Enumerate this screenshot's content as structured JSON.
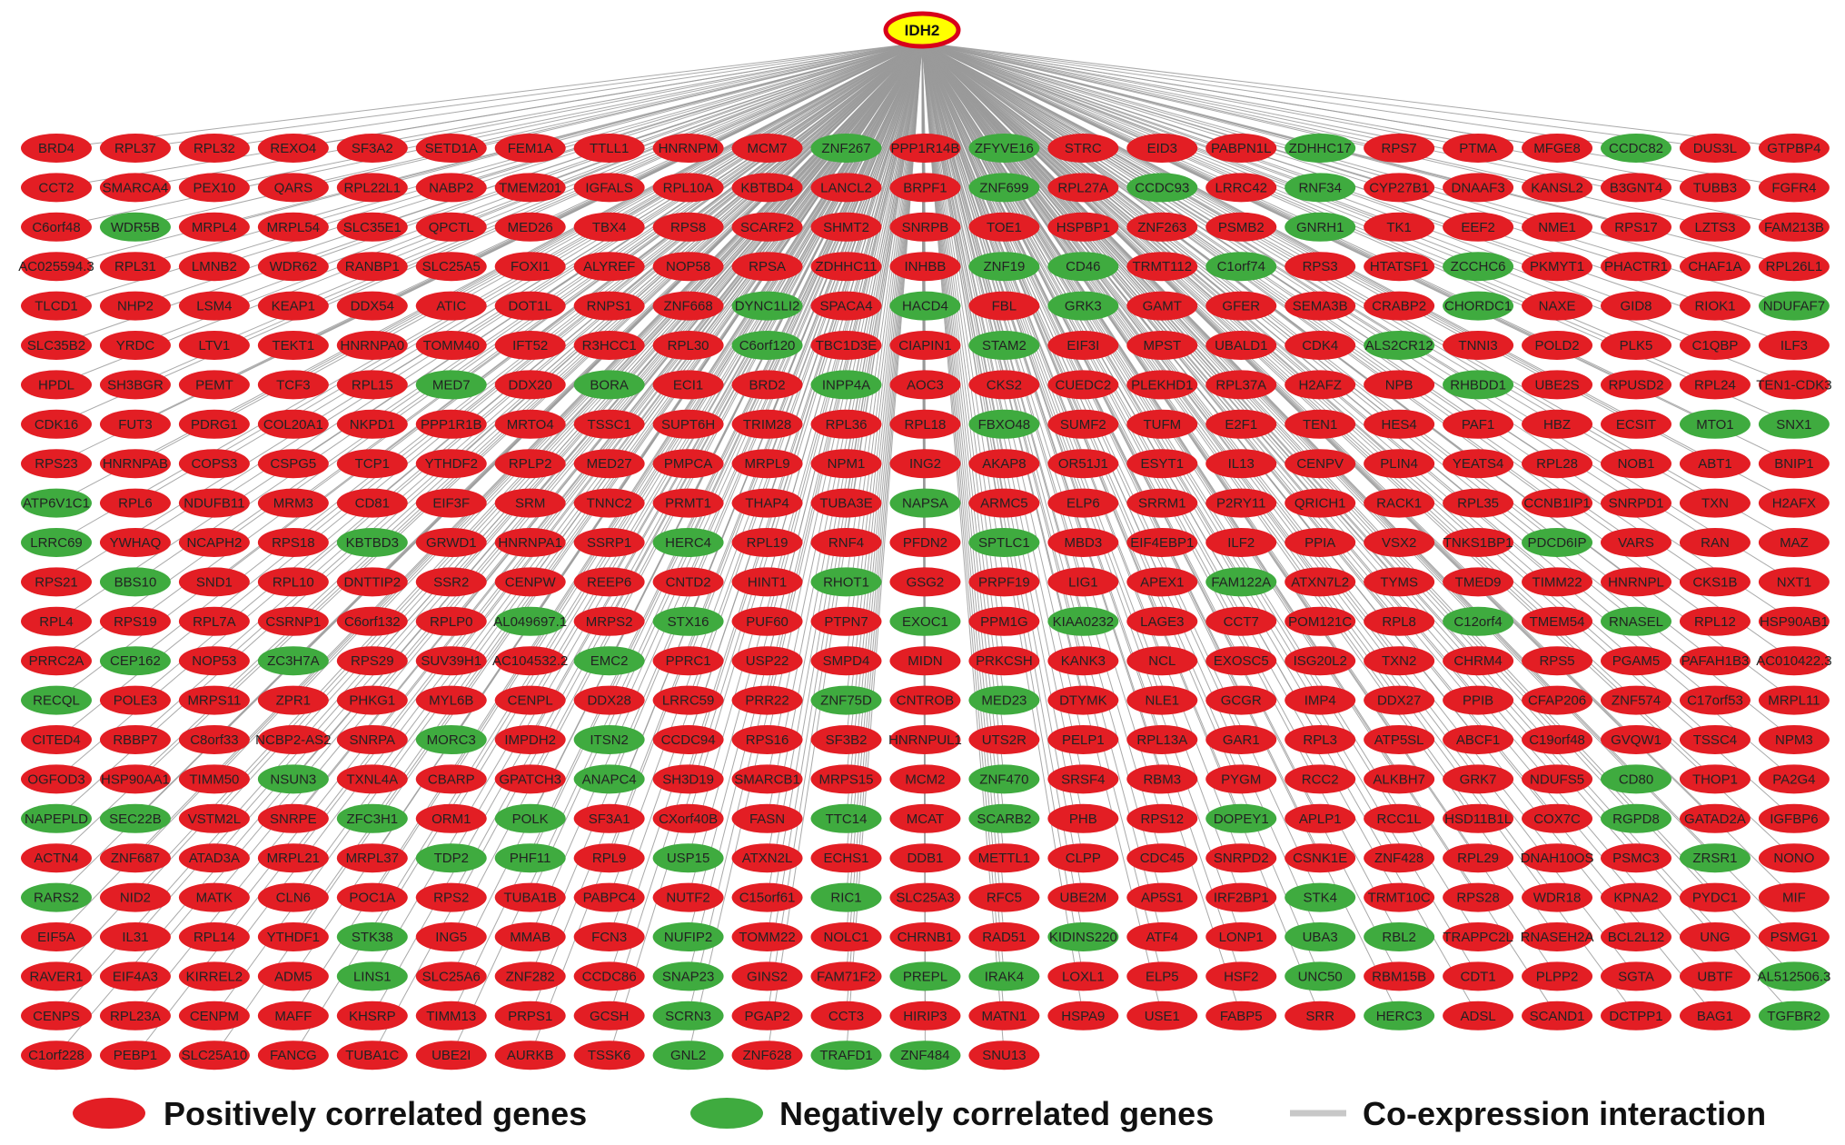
{
  "hub": {
    "label": "IDH2",
    "fill": "#ffff00",
    "stroke": "#d8001a"
  },
  "colors": {
    "positive": "#e31e24",
    "negative": "#3fab3f",
    "edge": "#9a9a9a"
  },
  "legend": {
    "positive": "Positively correlated genes",
    "negative": "Negatively correlated genes",
    "edge": "Co-expression interaction"
  },
  "genes": [
    [
      "BRD4",
      "RPL37",
      "RPL32",
      "REXO4",
      "SF3A2",
      "SETD1A",
      "FEM1A",
      "TTLL1",
      "HNRNPM",
      "MCM7",
      "ZNF267",
      "PPP1R14B",
      "ZFYVE16",
      "STRC",
      "EID3",
      "PABPN1L",
      "ZDHHC17",
      "RPS7",
      "PTMA",
      "MFGE8",
      "CCDC82",
      "DUS3L",
      "GTPBP4"
    ],
    [
      "CCT2",
      "SMARCA4",
      "PEX10",
      "QARS",
      "RPL22L1",
      "NABP2",
      "TMEM201",
      "IGFALS",
      "RPL10A",
      "KBTBD4",
      "LANCL2",
      "BRPF1",
      "ZNF699",
      "RPL27A",
      "CCDC93",
      "LRRC42",
      "RNF34",
      "CYP27B1",
      "DNAAF3",
      "KANSL2",
      "B3GNT4",
      "TUBB3",
      "FGFR4"
    ],
    [
      "C6orf48",
      "WDR5B",
      "MRPL4",
      "MRPL54",
      "SLC35E1",
      "QPCTL",
      "MED26",
      "TBX4",
      "RPS8",
      "SCARF2",
      "SHMT2",
      "SNRPB",
      "TOE1",
      "HSPBP1",
      "ZNF263",
      "PSMB2",
      "GNRH1",
      "TK1",
      "EEF2",
      "NME1",
      "RPS17",
      "LZTS3",
      "FAM213B"
    ],
    [
      "AC025594.3",
      "RPL31",
      "LMNB2",
      "WDR62",
      "RANBP1",
      "SLC25A5",
      "FOXI1",
      "ALYREF",
      "NOP58",
      "RPSA",
      "ZDHHC11",
      "INHBB",
      "ZNF19",
      "CD46",
      "TRMT112",
      "C1orf74",
      "RPS3",
      "HTATSF1",
      "ZCCHC6",
      "PKMYT1",
      "PHACTR1",
      "CHAF1A",
      "RPL26L1"
    ],
    [
      "TLCD1",
      "NHP2",
      "LSM4",
      "KEAP1",
      "DDX54",
      "ATIC",
      "DOT1L",
      "RNPS1",
      "ZNF668",
      "DYNC1LI2",
      "SPACA4",
      "HACD4",
      "FBL",
      "GRK3",
      "GAMT",
      "GFER",
      "SEMA3B",
      "CRABP2",
      "CHORDC1",
      "NAXE",
      "GID8",
      "RIOK1",
      "NDUFAF7"
    ],
    [
      "SLC35B2",
      "YRDC",
      "LTV1",
      "TEKT1",
      "HNRNPA0",
      "TOMM40",
      "IFT52",
      "R3HCC1",
      "RPL30",
      "C6orf120",
      "TBC1D3E",
      "CIAPIN1",
      "STAM2",
      "EIF3I",
      "MPST",
      "UBALD1",
      "CDK4",
      "ALS2CR12",
      "TNNI3",
      "POLD2",
      "PLK5",
      "C1QBP",
      "ILF3"
    ],
    [
      "HPDL",
      "SH3BGR",
      "PEMT",
      "TCF3",
      "RPL15",
      "MED7",
      "DDX20",
      "BORA",
      "ECI1",
      "BRD2",
      "INPP4A",
      "AOC3",
      "CKS2",
      "CUEDC2",
      "PLEKHD1",
      "RPL37A",
      "H2AFZ",
      "NPB",
      "RHBDD1",
      "UBE2S",
      "RPUSD2",
      "RPL24",
      "TEN1-CDK3"
    ],
    [
      "CDK16",
      "FUT3",
      "PDRG1",
      "COL20A1",
      "NKPD1",
      "PPP1R1B",
      "MRTO4",
      "TSSC1",
      "SUPT6H",
      "TRIM28",
      "RPL36",
      "RPL18",
      "FBXO48",
      "SUMF2",
      "TUFM",
      "E2F1",
      "TEN1",
      "HES4",
      "PAF1",
      "HBZ",
      "ECSIT",
      "MTO1",
      "SNX1"
    ],
    [
      "RPS23",
      "HNRNPAB",
      "COPS3",
      "CSPG5",
      "TCP1",
      "YTHDF2",
      "RPLP2",
      "MED27",
      "PMPCA",
      "MRPL9",
      "NPM1",
      "ING2",
      "AKAP8",
      "OR51J1",
      "ESYT1",
      "IL13",
      "CENPV",
      "PLIN4",
      "YEATS4",
      "RPL28",
      "NOB1",
      "ABT1",
      "BNIP1"
    ],
    [
      "ATP6V1C1",
      "RPL6",
      "NDUFB11",
      "MRM3",
      "CD81",
      "EIF3F",
      "SRM",
      "TNNC2",
      "PRMT1",
      "THAP4",
      "TUBA3E",
      "NAPSA",
      "ARMC5",
      "ELP6",
      "SRRM1",
      "P2RY11",
      "QRICH1",
      "RACK1",
      "RPL35",
      "CCNB1IP1",
      "SNRPD1",
      "TXN",
      "H2AFX"
    ],
    [
      "LRRC69",
      "YWHAQ",
      "NCAPH2",
      "RPS18",
      "KBTBD3",
      "GRWD1",
      "HNRNPA1",
      "SSRP1",
      "HERC4",
      "RPL19",
      "RNF4",
      "PFDN2",
      "SPTLC1",
      "MBD3",
      "EIF4EBP1",
      "ILF2",
      "PPIA",
      "VSX2",
      "TNKS1BP1",
      "PDCD6IP",
      "VARS",
      "RAN",
      "MAZ"
    ],
    [
      "RPS21",
      "BBS10",
      "SND1",
      "RPL10",
      "DNTTIP2",
      "SSR2",
      "CENPW",
      "REEP6",
      "CNTD2",
      "HINT1",
      "RHOT1",
      "GSG2",
      "PRPF19",
      "LIG1",
      "APEX1",
      "FAM122A",
      "ATXN7L2",
      "TYMS",
      "TMED9",
      "TIMM22",
      "HNRNPL",
      "CKS1B",
      "NXT1"
    ],
    [
      "RPL4",
      "RPS19",
      "RPL7A",
      "CSRNP1",
      "C6orf132",
      "RPLP0",
      "AL049697.1",
      "MRPS2",
      "STX16",
      "PUF60",
      "PTPN7",
      "EXOC1",
      "PPM1G",
      "KIAA0232",
      "LAGE3",
      "CCT7",
      "POM121C",
      "RPL8",
      "C12orf4",
      "TMEM54",
      "RNASEL",
      "RPL12",
      "HSP90AB1"
    ],
    [
      "PRRC2A",
      "CEP162",
      "NOP53",
      "ZC3H7A",
      "RPS29",
      "SUV39H1",
      "AC104532.2",
      "EMC2",
      "PPRC1",
      "USP22",
      "SMPD4",
      "MIDN",
      "PRKCSH",
      "KANK3",
      "NCL",
      "EXOSC5",
      "ISG20L2",
      "TXN2",
      "CHRM4",
      "RPS5",
      "PGAM5",
      "PAFAH1B3",
      "AC010422.3"
    ],
    [
      "RECQL",
      "POLE3",
      "MRPS11",
      "ZPR1",
      "PHKG1",
      "MYL6B",
      "CENPL",
      "DDX28",
      "LRRC59",
      "PRR22",
      "ZNF75D",
      "CNTROB",
      "MED23",
      "DTYMK",
      "NLE1",
      "GCGR",
      "IMP4",
      "DDX27",
      "PPIB",
      "CFAP206",
      "ZNF574",
      "C17orf53",
      "MRPL11"
    ],
    [
      "CITED4",
      "RBBP7",
      "C8orf33",
      "NCBP2-AS2",
      "SNRPA",
      "MORC3",
      "IMPDH2",
      "ITSN2",
      "CCDC94",
      "RPS16",
      "SF3B2",
      "HNRNPUL1",
      "UTS2R",
      "PELP1",
      "RPL13A",
      "GAR1",
      "RPL3",
      "ATP5SL",
      "ABCF1",
      "C19orf48",
      "GVQW1",
      "TSSC4",
      "NPM3"
    ],
    [
      "OGFOD3",
      "HSP90AA1",
      "TIMM50",
      "NSUN3",
      "TXNL4A",
      "CBARP",
      "GPATCH3",
      "ANAPC4",
      "SH3D19",
      "SMARCB1",
      "MRPS15",
      "MCM2",
      "ZNF470",
      "SRSF4",
      "RBM3",
      "PYGM",
      "RCC2",
      "ALKBH7",
      "GRK7",
      "NDUFS5",
      "CD80",
      "THOP1",
      "PA2G4"
    ],
    [
      "NAPEPLD",
      "SEC22B",
      "VSTM2L",
      "SNRPE",
      "ZFC3H1",
      "ORM1",
      "POLK",
      "SF3A1",
      "CXorf40B",
      "FASN",
      "TTC14",
      "MCAT",
      "SCARB2",
      "PHB",
      "RPS12",
      "DOPEY1",
      "APLP1",
      "RCC1L",
      "HSD11B1L",
      "COX7C",
      "RGPD8",
      "GATAD2A",
      "IGFBP6"
    ],
    [
      "ACTN4",
      "ZNF687",
      "ATAD3A",
      "MRPL21",
      "MRPL37",
      "TDP2",
      "PHF11",
      "RPL9",
      "USP15",
      "ATXN2L",
      "ECHS1",
      "DDB1",
      "METTL1",
      "CLPP",
      "CDC45",
      "SNRPD2",
      "CSNK1E",
      "ZNF428",
      "RPL29",
      "DNAH10OS",
      "PSMC3",
      "ZRSR1",
      "NONO"
    ],
    [
      "RARS2",
      "NID2",
      "MATK",
      "CLN6",
      "POC1A",
      "RPS2",
      "TUBA1B",
      "PABPC4",
      "NUTF2",
      "C15orf61",
      "RIC1",
      "SLC25A3",
      "RFC5",
      "UBE2M",
      "AP5S1",
      "IRF2BP1",
      "STK4",
      "TRMT10C",
      "RPS28",
      "WDR18",
      "KPNA2",
      "PYDC1",
      "MIF"
    ],
    [
      "EIF5A",
      "IL31",
      "RPL14",
      "YTHDF1",
      "STK38",
      "ING5",
      "MMAB",
      "FCN3",
      "NUFIP2",
      "TOMM22",
      "NOLC1",
      "CHRNB1",
      "RAD51",
      "KIDINS220",
      "ATF4",
      "LONP1",
      "UBA3",
      "RBL2",
      "TRAPPC2L",
      "RNASEH2A",
      "BCL2L12",
      "UNG",
      "PSMG1"
    ],
    [
      "RAVER1",
      "EIF4A3",
      "KIRREL2",
      "ADM5",
      "LINS1",
      "SLC25A6",
      "ZNF282",
      "CCDC86",
      "SNAP23",
      "GINS2",
      "FAM71F2",
      "PREPL",
      "IRAK4",
      "LOXL1",
      "ELP5",
      "HSF2",
      "UNC50",
      "RBM15B",
      "CDT1",
      "PLPP2",
      "SGTA",
      "UBTF",
      "AL512506.3"
    ],
    [
      "CENPS",
      "RPL23A",
      "CENPM",
      "MAFF",
      "KHSRP",
      "TIMM13",
      "PRPS1",
      "GCSH",
      "SCRN3",
      "PGAP2",
      "CCT3",
      "HIRIP3",
      "MATN1",
      "HSPA9",
      "USE1",
      "FABP5",
      "SRR",
      "HERC3",
      "ADSL",
      "SCAND1",
      "DCTPP1",
      "BAG1",
      "TGFBR2"
    ],
    [
      "C1orf228",
      "PEBP1",
      "SLC25A10",
      "FANCG",
      "TUBA1C",
      "UBE2I",
      "AURKB",
      "TSSK6",
      "GNL2",
      "ZNF628",
      "TRAFD1",
      "ZNF484",
      "SNU13"
    ]
  ],
  "negative_genes": [
    "ZNF267",
    "ZFYVE16",
    "ZDHHC17",
    "CCDC82",
    "ZNF699",
    "CCDC93",
    "RNF34",
    "WDR5B",
    "GNRH1",
    "ZNF19",
    "CD46",
    "C1orf74",
    "ZCCHC6",
    "DYNC1LI2",
    "HACD4",
    "GRK3",
    "CHORDC1",
    "NDUFAF7",
    "C6orf120",
    "STAM2",
    "ALS2CR12",
    "MED7",
    "BORA",
    "INPP4A",
    "RHBDD1",
    "FBXO48",
    "MTO1",
    "SNX1",
    "ATP6V1C1",
    "NAPSA",
    "LRRC69",
    "KBTBD3",
    "HERC4",
    "SPTLC1",
    "PDCD6IP",
    "BBS10",
    "RHOT1",
    "FAM122A",
    "AL049697.1",
    "STX16",
    "EXOC1",
    "KIAA0232",
    "C12orf4",
    "RNASEL",
    "CEP162",
    "ZC3H7A",
    "EMC2",
    "RECQL",
    "ZNF75D",
    "MED23",
    "MORC3",
    "ITSN2",
    "NSUN3",
    "ANAPC4",
    "ZNF470",
    "CD80",
    "NAPEPLD",
    "SEC22B",
    "ZFC3H1",
    "POLK",
    "TTC14",
    "SCARB2",
    "DOPEY1",
    "RGPD8",
    "TDP2",
    "PHF11",
    "USP15",
    "ZRSR1",
    "RARS2",
    "RIC1",
    "STK4",
    "STK38",
    "NUFIP2",
    "KIDINS220",
    "UBA3",
    "RBL2",
    "LINS1",
    "SNAP23",
    "PREPL",
    "IRAK4",
    "UNC50",
    "AL512506.3",
    "SCRN3",
    "HERC3",
    "TGFBR2",
    "GNL2",
    "TRAFD1",
    "ZNF484"
  ]
}
